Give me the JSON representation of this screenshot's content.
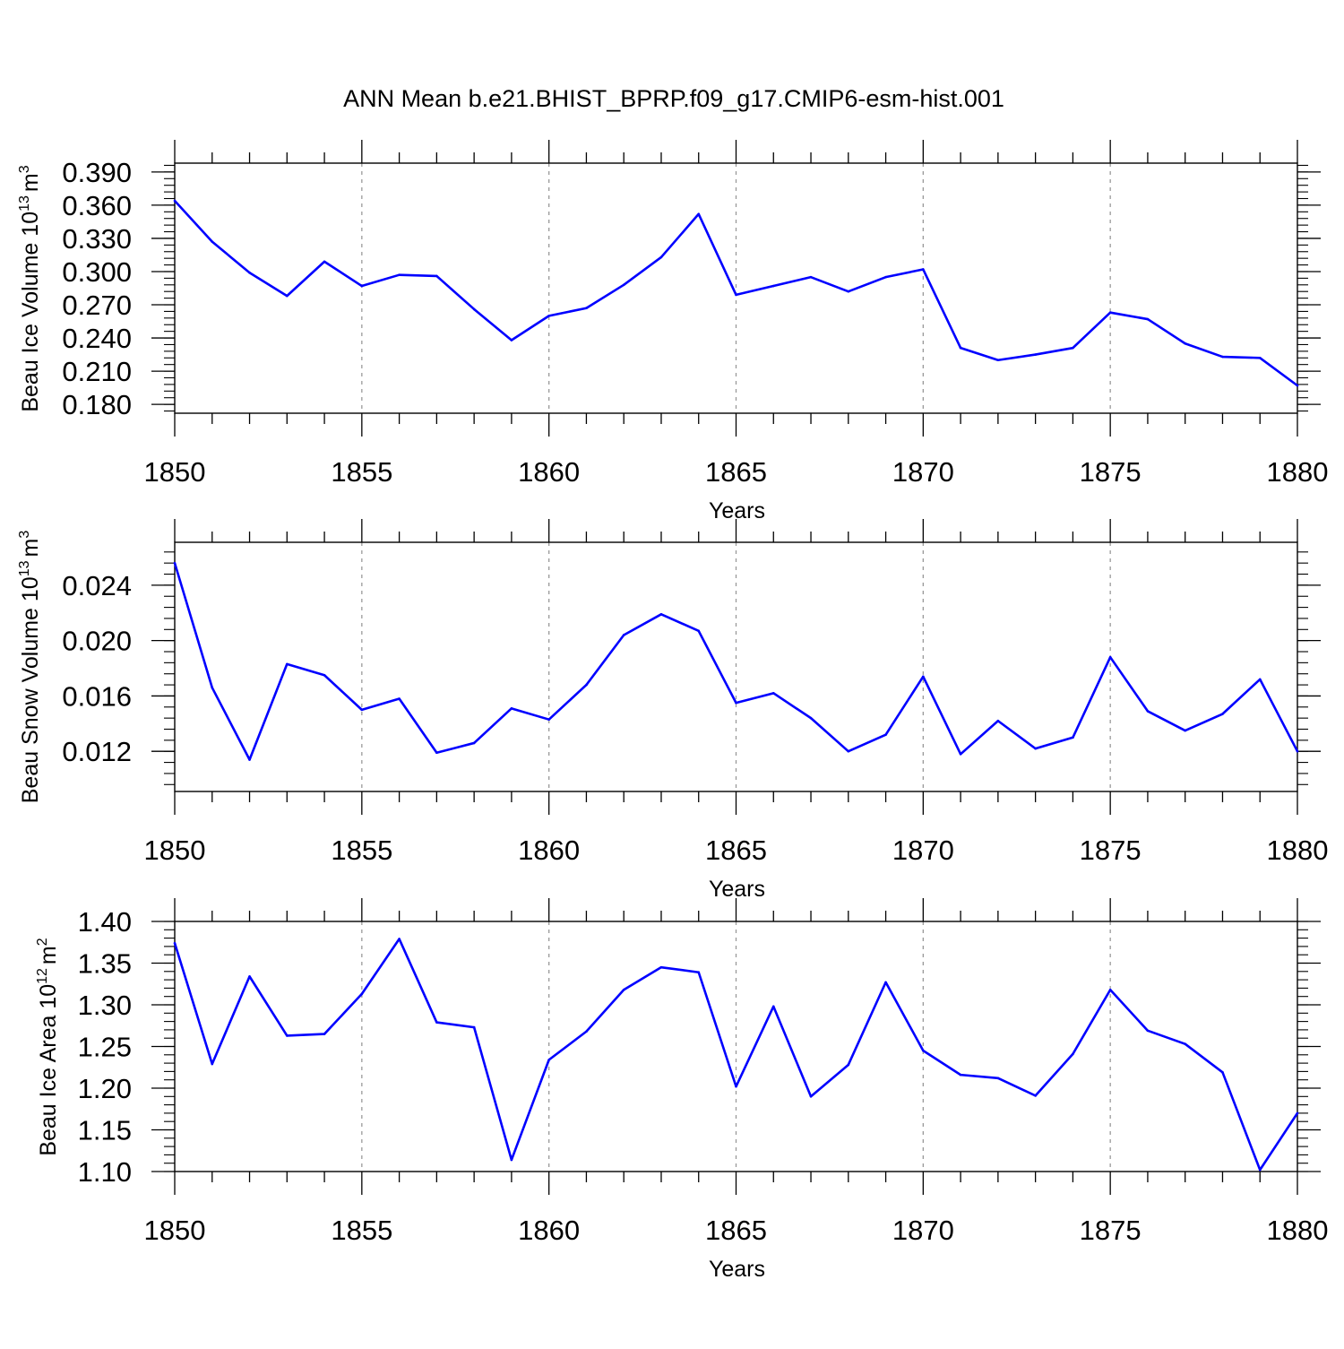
{
  "figure": {
    "title": "ANN Mean b.e21.BHIST_BPRP.f09_g17.CMIP6-esm-hist.001",
    "line_color": "#0000ff",
    "grid_color": "#999999"
  },
  "chart_data": [
    {
      "type": "line",
      "title": "",
      "xlabel": "Years",
      "ylabel": "Beau Ice Volume 10",
      "ylabel_exp": "13",
      "ylabel_unit": "m",
      "ylabel_unit_exp": "3",
      "xlim": [
        1850,
        1880
      ],
      "ylim": [
        0.172,
        0.398
      ],
      "xticks": [
        1850,
        1855,
        1860,
        1865,
        1870,
        1875,
        1880
      ],
      "xtick_labels": [
        "1850",
        "1855",
        "1860",
        "1865",
        "1870",
        "1875",
        "1880"
      ],
      "yticks": [
        0.18,
        0.21,
        0.24,
        0.27,
        0.3,
        0.33,
        0.36,
        0.39
      ],
      "ytick_labels": [
        "0.180",
        "0.210",
        "0.240",
        "0.270",
        "0.300",
        "0.330",
        "0.360",
        "0.390"
      ],
      "yminor": 0.006,
      "x": [
        1850,
        1851,
        1852,
        1853,
        1854,
        1855,
        1856,
        1857,
        1858,
        1859,
        1860,
        1861,
        1862,
        1863,
        1864,
        1865,
        1866,
        1867,
        1868,
        1869,
        1870,
        1871,
        1872,
        1873,
        1874,
        1875,
        1876,
        1877,
        1878,
        1879,
        1880
      ],
      "series": [
        {
          "name": "Beau Ice Volume",
          "values": [
            0.364,
            0.327,
            0.299,
            0.278,
            0.309,
            0.287,
            0.297,
            0.296,
            0.266,
            0.238,
            0.26,
            0.267,
            0.288,
            0.313,
            0.352,
            0.279,
            0.287,
            0.295,
            0.282,
            0.295,
            0.302,
            0.231,
            0.22,
            0.225,
            0.231,
            0.263,
            0.257,
            0.235,
            0.223,
            0.222,
            0.197
          ]
        }
      ]
    },
    {
      "type": "line",
      "title": "",
      "xlabel": "Years",
      "ylabel": "Beau Snow Volume 10",
      "ylabel_exp": "13",
      "ylabel_unit": "m",
      "ylabel_unit_exp": "3",
      "xlim": [
        1850,
        1880
      ],
      "ylim": [
        0.0091,
        0.0271
      ],
      "xticks": [
        1850,
        1855,
        1860,
        1865,
        1870,
        1875,
        1880
      ],
      "xtick_labels": [
        "1850",
        "1855",
        "1860",
        "1865",
        "1870",
        "1875",
        "1880"
      ],
      "yticks": [
        0.012,
        0.016,
        0.02,
        0.024
      ],
      "ytick_labels": [
        "0.012",
        "0.016",
        "0.020",
        "0.024"
      ],
      "yminor": 0.0008,
      "x": [
        1850,
        1851,
        1852,
        1853,
        1854,
        1855,
        1856,
        1857,
        1858,
        1859,
        1860,
        1861,
        1862,
        1863,
        1864,
        1865,
        1866,
        1867,
        1868,
        1869,
        1870,
        1871,
        1872,
        1873,
        1874,
        1875,
        1876,
        1877,
        1878,
        1879,
        1880
      ],
      "series": [
        {
          "name": "Beau Snow Volume",
          "values": [
            0.0256,
            0.0166,
            0.0114,
            0.0183,
            0.0175,
            0.015,
            0.0158,
            0.0119,
            0.0126,
            0.0151,
            0.0143,
            0.0168,
            0.0204,
            0.0219,
            0.0207,
            0.0155,
            0.0162,
            0.0144,
            0.012,
            0.0132,
            0.0174,
            0.0118,
            0.0142,
            0.0122,
            0.013,
            0.0188,
            0.0149,
            0.0135,
            0.0147,
            0.0172,
            0.012
          ]
        }
      ]
    },
    {
      "type": "line",
      "title": "",
      "xlabel": "Years",
      "ylabel": "Beau Ice Area 10",
      "ylabel_exp": "12",
      "ylabel_unit": "m",
      "ylabel_unit_exp": "2",
      "xlim": [
        1850,
        1880
      ],
      "ylim": [
        1.1,
        1.4
      ],
      "xticks": [
        1850,
        1855,
        1860,
        1865,
        1870,
        1875,
        1880
      ],
      "xtick_labels": [
        "1850",
        "1855",
        "1860",
        "1865",
        "1870",
        "1875",
        "1880"
      ],
      "yticks": [
        1.1,
        1.15,
        1.2,
        1.25,
        1.3,
        1.35,
        1.4
      ],
      "ytick_labels": [
        "1.10",
        "1.15",
        "1.20",
        "1.25",
        "1.30",
        "1.35",
        "1.40"
      ],
      "yminor": 0.01,
      "x": [
        1850,
        1851,
        1852,
        1853,
        1854,
        1855,
        1856,
        1857,
        1858,
        1859,
        1860,
        1861,
        1862,
        1863,
        1864,
        1865,
        1866,
        1867,
        1868,
        1869,
        1870,
        1871,
        1872,
        1873,
        1874,
        1875,
        1876,
        1877,
        1878,
        1879,
        1880
      ],
      "series": [
        {
          "name": "Beau Ice Area",
          "values": [
            1.374,
            1.229,
            1.334,
            1.263,
            1.265,
            1.313,
            1.379,
            1.279,
            1.273,
            1.114,
            1.234,
            1.268,
            1.318,
            1.345,
            1.339,
            1.202,
            1.298,
            1.19,
            1.228,
            1.327,
            1.245,
            1.216,
            1.212,
            1.191,
            1.241,
            1.318,
            1.269,
            1.253,
            1.219,
            1.102,
            1.17
          ]
        }
      ]
    }
  ]
}
